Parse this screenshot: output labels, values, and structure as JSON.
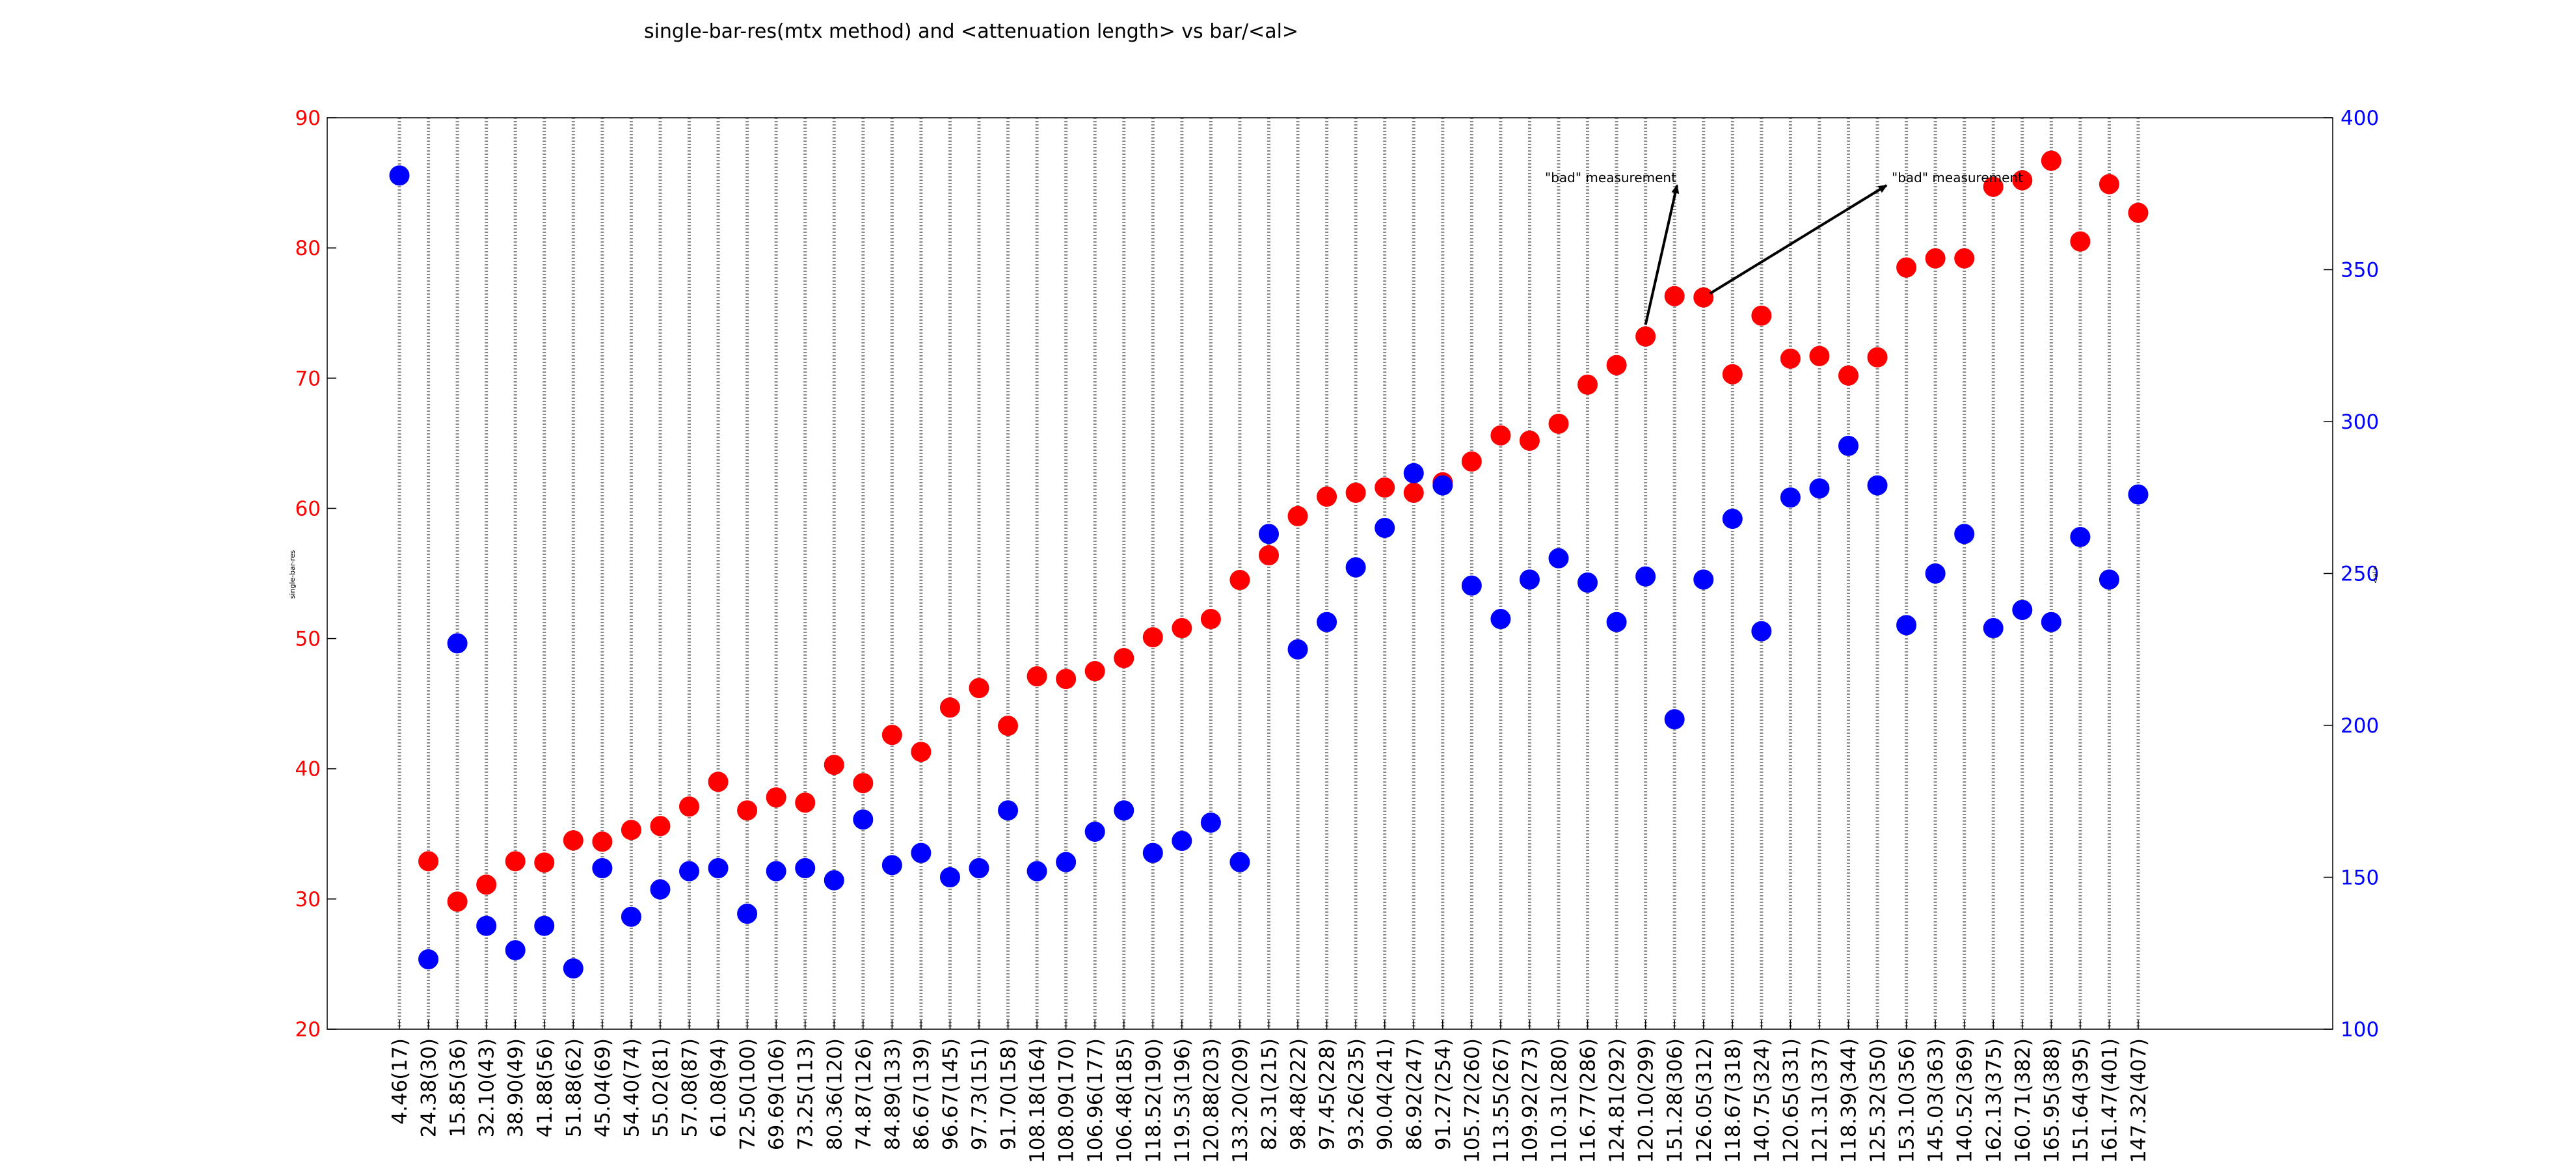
{
  "chart_data": {
    "type": "scatter",
    "title": "single-bar-res(mtx method) and <attenuation length> vs bar/<al>",
    "ylabel_left": "single-bar-res",
    "ylabel_right": "<al>",
    "ylim_left": [
      20,
      90
    ],
    "yticks_left": [
      "20",
      "30",
      "40",
      "50",
      "60",
      "70",
      "80",
      "90"
    ],
    "ylim_right": [
      100,
      400
    ],
    "yticks_right": [
      "100",
      "150",
      "200",
      "250",
      "300",
      "350",
      "400"
    ],
    "grid": "vertical dotted lines at each category",
    "categories": [
      "4.46(17)",
      "24.38(30)",
      "15.85(36)",
      "32.10(43)",
      "38.90(49)",
      "41.88(56)",
      "51.88(62)",
      "45.04(69)",
      "54.40(74)",
      "55.02(81)",
      "57.08(87)",
      "61.08(94)",
      "72.50(100)",
      "69.69(106)",
      "73.25(113)",
      "80.36(120)",
      "74.87(126)",
      "84.89(133)",
      "86.67(139)",
      "96.67(145)",
      "97.73(151)",
      "91.70(158)",
      "108.18(164)",
      "108.09(170)",
      "106.96(177)",
      "106.48(185)",
      "118.52(190)",
      "119.53(196)",
      "120.88(203)",
      "133.20(209)",
      "82.31(215)",
      "98.48(222)",
      "97.45(228)",
      "93.26(235)",
      "90.04(241)",
      "86.92(247)",
      "91.27(254)",
      "105.72(260)",
      "113.55(267)",
      "109.92(273)",
      "110.31(280)",
      "116.77(286)",
      "124.81(292)",
      "120.10(299)",
      "151.28(306)",
      "126.05(312)",
      "118.67(318)",
      "140.75(324)",
      "120.65(331)",
      "121.31(337)",
      "118.39(344)",
      "125.32(350)",
      "153.10(356)",
      "145.03(363)",
      "140.52(369)",
      "162.13(375)",
      "160.71(382)",
      "165.95(388)",
      "151.64(395)",
      "161.47(401)",
      "147.32(407)"
    ],
    "series": [
      {
        "axis": "left",
        "color": "#ff0000",
        "values": [
          null,
          32.9,
          29.8,
          31.1,
          32.9,
          32.8,
          34.5,
          34.4,
          35.3,
          35.6,
          37.1,
          39.0,
          36.8,
          37.8,
          37.4,
          40.3,
          38.9,
          42.6,
          41.3,
          44.7,
          46.2,
          43.3,
          47.1,
          46.9,
          47.5,
          48.5,
          50.1,
          50.8,
          51.5,
          54.5,
          56.4,
          59.4,
          60.9,
          61.2,
          61.6,
          61.2,
          62.0,
          63.6,
          65.6,
          65.2,
          66.5,
          69.5,
          71.0,
          73.2,
          76.3,
          76.2,
          70.3,
          74.8,
          71.5,
          71.7,
          70.2,
          71.6,
          78.5,
          79.2,
          79.2,
          84.7,
          85.2,
          86.7,
          80.5,
          84.9,
          82.7
        ]
      },
      {
        "axis": "right",
        "color": "#0000ff",
        "values": [
          381,
          123,
          227,
          134,
          126,
          134,
          120,
          153,
          137,
          146,
          152,
          153,
          138,
          152,
          153,
          149,
          169,
          154,
          158,
          150,
          153,
          172,
          152,
          155,
          165,
          172,
          158,
          162,
          168,
          155,
          263,
          225,
          234,
          252,
          265,
          283,
          279,
          246,
          235,
          248,
          255,
          247,
          234,
          249,
          202,
          248,
          268,
          231,
          275,
          278,
          292,
          279,
          233,
          250,
          263,
          232,
          238,
          234,
          262,
          248,
          276
        ]
      }
    ],
    "annotations": [
      {
        "text": "\"bad\" measurement",
        "points_to_category": "120.10(299)"
      },
      {
        "text": "\"bad\" measurement",
        "points_to_category": "126.05(312)"
      }
    ]
  },
  "colors": {
    "left_axis": "#ff0000",
    "right_axis": "#0000ff",
    "grid": "#888888"
  }
}
